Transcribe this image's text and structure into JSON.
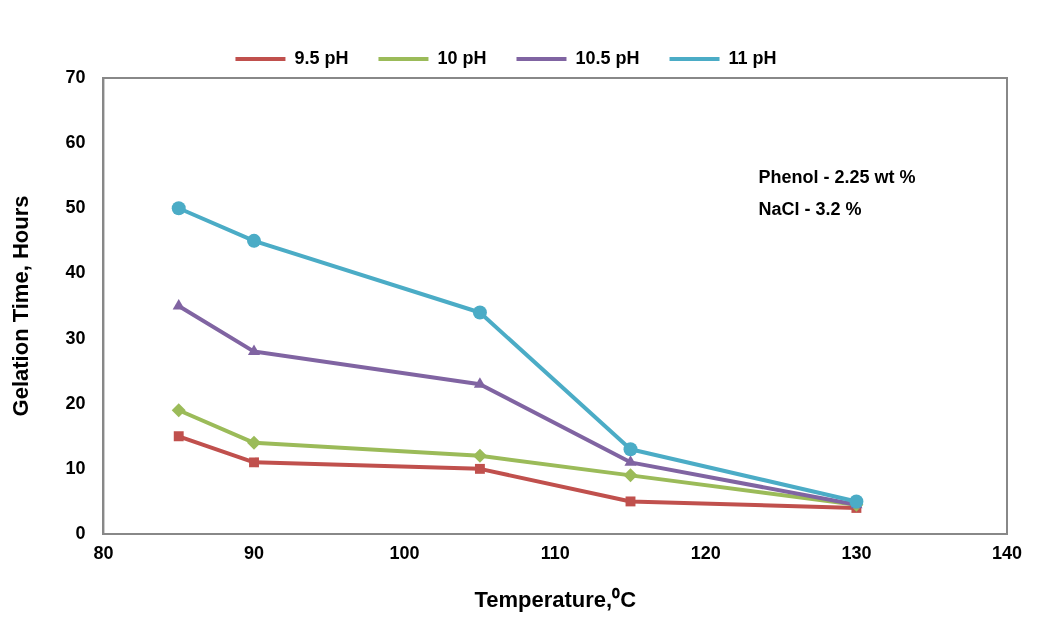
{
  "chart_data": {
    "type": "line",
    "xlabel": "Temperature,⁰C",
    "ylabel": "Gelation Time, Hours",
    "x": [
      85,
      90,
      105,
      115,
      130
    ],
    "series": [
      {
        "name": "9.5 pH",
        "color": "#c0504d",
        "marker": "square",
        "values": [
          15,
          11,
          10,
          5,
          4
        ]
      },
      {
        "name": "10 pH",
        "color": "#9bbb59",
        "marker": "diamond",
        "values": [
          19,
          14,
          12,
          9,
          4.5
        ]
      },
      {
        "name": "10.5 pH",
        "color": "#8064a2",
        "marker": "triangle",
        "values": [
          35,
          28,
          23,
          11,
          4.5
        ]
      },
      {
        "name": "11 pH",
        "color": "#4bacc6",
        "marker": "circle",
        "values": [
          50,
          45,
          34,
          13,
          5
        ]
      }
    ],
    "xlim": [
      80,
      140
    ],
    "xticks": [
      80,
      90,
      100,
      110,
      120,
      130,
      140
    ],
    "ylim": [
      0,
      70
    ],
    "yticks": [
      0,
      10,
      20,
      30,
      40,
      50,
      60,
      70
    ],
    "grid": false,
    "legend": "top",
    "line_style": "solid",
    "annotations": [
      "Phenol - 2.25 wt %",
      "NaCl - 3.2 %"
    ]
  }
}
